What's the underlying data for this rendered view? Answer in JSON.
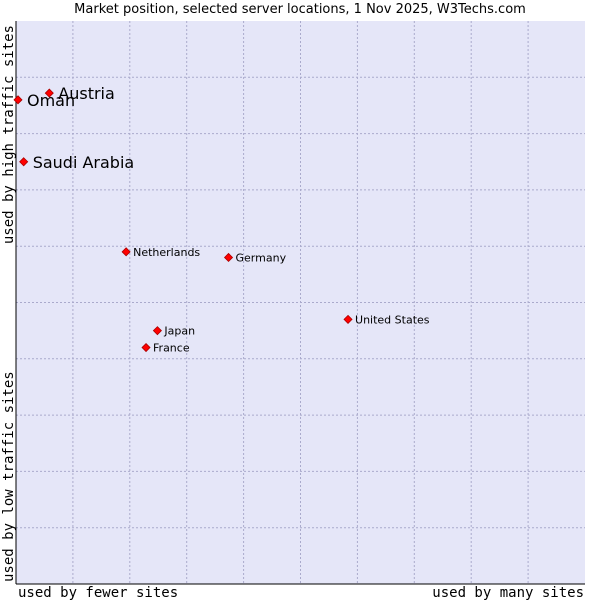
{
  "title": "Market position, selected server locations, 1 Nov 2025, W3Techs.com",
  "chart_data": {
    "type": "scatter",
    "title": "Market position, selected server locations, 1 Nov 2025, W3Techs.com",
    "xlabel_left": "used by fewer sites",
    "xlabel_right": "used by many sites",
    "ylabel_top": "used by high traffic sites",
    "ylabel_bottom": "used by low traffic sites",
    "xlim": [
      0,
      10
    ],
    "ylim": [
      0,
      10
    ],
    "grid": true,
    "points": [
      {
        "name": "Austria",
        "x": 0.55,
        "y": 8.72,
        "size": "large"
      },
      {
        "name": "Oman",
        "x": 0.0,
        "y": 8.6,
        "size": "large"
      },
      {
        "name": "Saudi Arabia",
        "x": 0.1,
        "y": 7.5,
        "size": "large"
      },
      {
        "name": "Netherlands",
        "x": 1.9,
        "y": 5.9,
        "size": "small"
      },
      {
        "name": "Germany",
        "x": 3.7,
        "y": 5.8,
        "size": "small"
      },
      {
        "name": "United States",
        "x": 5.8,
        "y": 4.7,
        "size": "small"
      },
      {
        "name": "Japan",
        "x": 2.45,
        "y": 4.5,
        "size": "small"
      },
      {
        "name": "France",
        "x": 2.25,
        "y": 4.2,
        "size": "small"
      }
    ]
  },
  "colors": {
    "plot_bg": "#e5e6f8",
    "grid": "#aaaacc",
    "marker": "#ff0000",
    "marker_edge": "#aa0000"
  }
}
